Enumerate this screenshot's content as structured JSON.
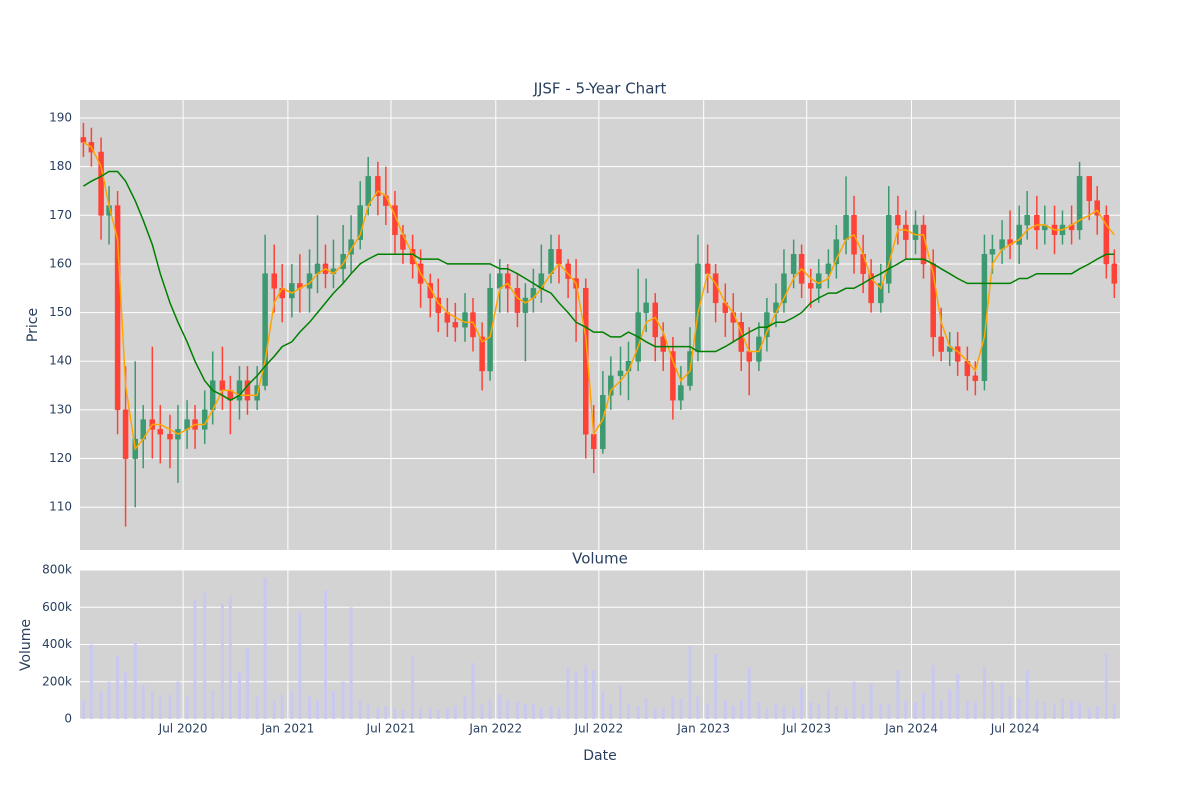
{
  "chart_data": [
    {
      "type": "candlestick",
      "title": "JJSF - 5-Year Chart",
      "y_label": "Price",
      "x": [
        "2020-01-08",
        "2020-01-22",
        "2020-02-08",
        "2020-02-22",
        "2020-03-08",
        "2020-03-22",
        "2020-04-08",
        "2020-04-22",
        "2020-05-08",
        "2020-05-22",
        "2020-06-08",
        "2020-06-22",
        "2020-07-08",
        "2020-07-22",
        "2020-08-08",
        "2020-08-22",
        "2020-09-08",
        "2020-09-22",
        "2020-10-08",
        "2020-10-22",
        "2020-11-08",
        "2020-11-22",
        "2020-12-08",
        "2020-12-22",
        "2021-01-08",
        "2021-01-22",
        "2021-02-08",
        "2021-02-22",
        "2021-03-08",
        "2021-03-22",
        "2021-04-08",
        "2021-04-22",
        "2021-05-08",
        "2021-05-22",
        "2021-06-08",
        "2021-06-22",
        "2021-07-08",
        "2021-07-22",
        "2021-08-08",
        "2021-08-22",
        "2021-09-08",
        "2021-09-22",
        "2021-10-08",
        "2021-10-22",
        "2021-11-08",
        "2021-11-22",
        "2021-12-08",
        "2021-12-22",
        "2022-01-08",
        "2022-01-22",
        "2022-02-08",
        "2022-02-22",
        "2022-03-08",
        "2022-03-22",
        "2022-04-08",
        "2022-04-22",
        "2022-05-08",
        "2022-05-22",
        "2022-06-08",
        "2022-06-22",
        "2022-07-08",
        "2022-07-22",
        "2022-08-08",
        "2022-08-22",
        "2022-09-08",
        "2022-09-22",
        "2022-10-08",
        "2022-10-22",
        "2022-11-08",
        "2022-11-22",
        "2022-12-08",
        "2022-12-22",
        "2023-01-08",
        "2023-01-22",
        "2023-02-08",
        "2023-02-22",
        "2023-03-08",
        "2023-03-22",
        "2023-04-08",
        "2023-04-22",
        "2023-05-08",
        "2023-05-22",
        "2023-06-08",
        "2023-06-22",
        "2023-07-08",
        "2023-07-22",
        "2023-08-08",
        "2023-08-22",
        "2023-09-08",
        "2023-09-22",
        "2023-10-08",
        "2023-10-22",
        "2023-11-08",
        "2023-11-22",
        "2023-12-08",
        "2023-12-22",
        "2024-01-08",
        "2024-01-22",
        "2024-02-08",
        "2024-02-22",
        "2024-03-08",
        "2024-03-22",
        "2024-04-08",
        "2024-04-22",
        "2024-05-08",
        "2024-05-22",
        "2024-06-08",
        "2024-06-22",
        "2024-07-08",
        "2024-07-22",
        "2024-08-08",
        "2024-08-22",
        "2024-09-08",
        "2024-09-22",
        "2024-10-08",
        "2024-10-22",
        "2024-11-08",
        "2024-11-22",
        "2024-12-08",
        "2024-12-22"
      ],
      "open": [
        186,
        185,
        183,
        170,
        172,
        130,
        120,
        124,
        128,
        126,
        125,
        124,
        126,
        128,
        126,
        130,
        136,
        134,
        132,
        136,
        132,
        135,
        158,
        155,
        153,
        156,
        155,
        158,
        160,
        158,
        159,
        162,
        165,
        172,
        178,
        174,
        172,
        166,
        163,
        160,
        156,
        153,
        150,
        148,
        147,
        150,
        145,
        138,
        155,
        158,
        155,
        150,
        153,
        155,
        158,
        163,
        160,
        157,
        155,
        125,
        122,
        133,
        137,
        138,
        140,
        150,
        152,
        145,
        142,
        132,
        135,
        142,
        160,
        158,
        152,
        150,
        148,
        142,
        140,
        145,
        150,
        152,
        158,
        162,
        156,
        155,
        158,
        160,
        165,
        170,
        162,
        158,
        152,
        156,
        170,
        168,
        165,
        168,
        160,
        145,
        142,
        143,
        140,
        137,
        136,
        162,
        163,
        165,
        164,
        168,
        170,
        167,
        168,
        166,
        168,
        167,
        178,
        173,
        170,
        160
      ],
      "high": [
        189,
        188,
        186,
        176,
        175,
        139,
        140,
        131,
        143,
        131,
        129,
        131,
        132,
        131,
        134,
        142,
        143,
        137,
        139,
        139,
        139,
        166,
        164,
        160,
        160,
        162,
        163,
        170,
        164,
        165,
        168,
        170,
        177,
        182,
        181,
        180,
        175,
        168,
        166,
        163,
        158,
        157,
        153,
        152,
        154,
        153,
        148,
        158,
        161,
        160,
        158,
        156,
        159,
        164,
        166,
        166,
        161,
        161,
        157,
        131,
        138,
        141,
        143,
        144,
        159,
        157,
        154,
        148,
        145,
        139,
        147,
        166,
        164,
        160,
        156,
        154,
        150,
        147,
        148,
        153,
        156,
        163,
        165,
        164,
        159,
        161,
        163,
        168,
        178,
        174,
        166,
        161,
        160,
        176,
        174,
        171,
        171,
        170,
        163,
        151,
        146,
        146,
        143,
        140,
        166,
        166,
        169,
        171,
        172,
        175,
        174,
        172,
        172,
        171,
        172,
        181,
        178,
        176,
        172,
        163
      ],
      "low": [
        182,
        180,
        165,
        164,
        125,
        106,
        110,
        118,
        120,
        119,
        118,
        115,
        122,
        122,
        123,
        127,
        130,
        125,
        128,
        129,
        130,
        134,
        150,
        148,
        149,
        150,
        150,
        154,
        155,
        155,
        156,
        158,
        163,
        170,
        170,
        168,
        162,
        160,
        157,
        151,
        149,
        146,
        145,
        144,
        144,
        142,
        134,
        136,
        150,
        150,
        147,
        140,
        150,
        152,
        156,
        156,
        153,
        144,
        120,
        117,
        121,
        130,
        133,
        132,
        138,
        146,
        140,
        138,
        128,
        130,
        134,
        140,
        154,
        148,
        145,
        144,
        138,
        133,
        138,
        142,
        147,
        150,
        155,
        153,
        151,
        152,
        155,
        157,
        162,
        158,
        154,
        150,
        150,
        154,
        164,
        161,
        162,
        157,
        141,
        140,
        139,
        137,
        134,
        133,
        134,
        158,
        160,
        161,
        160,
        165,
        163,
        164,
        162,
        164,
        164,
        165,
        169,
        166,
        157,
        153
      ],
      "close": [
        185,
        183,
        170,
        172,
        130,
        120,
        124,
        128,
        126,
        125,
        124,
        126,
        128,
        126,
        130,
        136,
        134,
        132,
        136,
        132,
        135,
        158,
        155,
        153,
        156,
        155,
        158,
        160,
        158,
        159,
        162,
        165,
        172,
        178,
        174,
        172,
        166,
        163,
        160,
        156,
        153,
        150,
        148,
        147,
        150,
        145,
        138,
        155,
        158,
        155,
        150,
        153,
        155,
        158,
        163,
        160,
        157,
        155,
        125,
        122,
        133,
        137,
        138,
        140,
        150,
        152,
        145,
        142,
        132,
        135,
        142,
        160,
        158,
        152,
        150,
        148,
        142,
        140,
        145,
        150,
        152,
        158,
        162,
        156,
        155,
        158,
        160,
        165,
        170,
        162,
        158,
        152,
        156,
        170,
        168,
        165,
        168,
        160,
        145,
        142,
        143,
        140,
        137,
        136,
        162,
        163,
        165,
        164,
        168,
        170,
        167,
        168,
        166,
        168,
        167,
        178,
        173,
        170,
        160,
        156
      ],
      "increasing_color": "#3d9970",
      "decreasing_color": "#ff4136",
      "series": [
        {
          "color": "#ffa500",
          "values": [
            185,
            184,
            180,
            172,
            165,
            135,
            122,
            124,
            127,
            127,
            126,
            125,
            126,
            127,
            127,
            130,
            134,
            134,
            133,
            133,
            133,
            140,
            152,
            155,
            154,
            155,
            156,
            158,
            159,
            158,
            160,
            163,
            166,
            172,
            175,
            174,
            170,
            166,
            162,
            158,
            155,
            152,
            150,
            149,
            148,
            148,
            144,
            145,
            155,
            156,
            153,
            152,
            153,
            155,
            158,
            160,
            158,
            156,
            145,
            125,
            128,
            134,
            136,
            138,
            143,
            148,
            149,
            146,
            140,
            136,
            138,
            150,
            158,
            156,
            152,
            150,
            146,
            142,
            142,
            146,
            150,
            153,
            157,
            159,
            157,
            156,
            157,
            161,
            165,
            166,
            162,
            157,
            155,
            160,
            167,
            167,
            166,
            166,
            158,
            148,
            143,
            142,
            140,
            138,
            145,
            160,
            163,
            164,
            165,
            167,
            168,
            168,
            167,
            167,
            168,
            169,
            170,
            171,
            168,
            166
          ]
        },
        {
          "color": "#008000",
          "values": [
            176,
            177,
            178,
            179,
            179,
            177,
            173,
            169,
            164,
            158,
            152,
            148,
            144,
            140,
            136,
            134,
            133,
            132,
            133,
            135,
            137,
            139,
            141,
            143,
            144,
            146,
            148,
            150,
            152,
            154,
            156,
            158,
            160,
            161,
            162,
            162,
            162,
            162,
            162,
            161,
            161,
            161,
            160,
            160,
            160,
            160,
            160,
            160,
            159,
            159,
            158,
            157,
            156,
            155,
            154,
            152,
            150,
            148,
            147,
            146,
            146,
            145,
            145,
            146,
            145,
            144,
            143,
            143,
            143,
            143,
            143,
            142,
            142,
            142,
            143,
            144,
            145,
            146,
            147,
            147,
            148,
            148,
            149,
            150,
            152,
            153,
            154,
            154,
            155,
            155,
            156,
            157,
            158,
            159,
            160,
            161,
            161,
            161,
            160,
            159,
            158,
            157,
            156,
            156,
            156,
            156,
            156,
            156,
            157,
            157,
            158,
            158,
            158,
            158,
            158,
            159,
            160,
            161,
            162,
            162
          ]
        }
      ],
      "ylim": [
        101.2,
        193.7
      ],
      "yticks": [
        110,
        120,
        130,
        140,
        150,
        160,
        170,
        180,
        190
      ],
      "grid": true
    },
    {
      "type": "bar",
      "title": "Volume",
      "y_label": "Volume",
      "x_label": "Date",
      "color": "#c8c8f0",
      "values": [
        100000,
        400000,
        150000,
        200000,
        340000,
        250000,
        410000,
        180000,
        150000,
        120000,
        130000,
        200000,
        120000,
        640000,
        680000,
        150000,
        620000,
        660000,
        250000,
        380000,
        120000,
        760000,
        100000,
        130000,
        150000,
        580000,
        120000,
        100000,
        690000,
        150000,
        200000,
        600000,
        100000,
        80000,
        60000,
        70000,
        60000,
        50000,
        340000,
        60000,
        60000,
        50000,
        60000,
        70000,
        120000,
        300000,
        80000,
        100000,
        130000,
        100000,
        90000,
        80000,
        80000,
        60000,
        70000,
        60000,
        280000,
        250000,
        290000,
        260000,
        150000,
        80000,
        180000,
        80000,
        70000,
        110000,
        60000,
        60000,
        120000,
        110000,
        390000,
        120000,
        80000,
        350000,
        100000,
        70000,
        100000,
        280000,
        90000,
        60000,
        80000,
        70000,
        60000,
        170000,
        90000,
        80000,
        160000,
        70000,
        60000,
        200000,
        80000,
        190000,
        80000,
        80000,
        260000,
        100000,
        90000,
        140000,
        290000,
        100000,
        160000,
        240000,
        100000,
        90000,
        280000,
        200000,
        190000,
        120000,
        110000,
        260000,
        100000,
        90000,
        80000,
        110000,
        100000,
        90000,
        60000,
        70000,
        350000,
        80000
      ],
      "ylim": [
        0,
        800000
      ],
      "yticks": [
        0,
        {
          "value": 200000,
          "label": "200k"
        },
        {
          "value": 400000,
          "label": "400k"
        },
        {
          "value": 600000,
          "label": "600k"
        },
        {
          "value": 800000,
          "label": "800k"
        }
      ],
      "xlim": [
        "2020-01-02",
        "2025-01-01"
      ],
      "xticks": [
        {
          "value": "2020-07-01",
          "label": "Jul 2020"
        },
        {
          "value": "2021-01-01",
          "label": "Jan 2021"
        },
        {
          "value": "2021-07-01",
          "label": "Jul 2021"
        },
        {
          "value": "2022-01-01",
          "label": "Jan 2022"
        },
        {
          "value": "2022-07-01",
          "label": "Jul 2022"
        },
        {
          "value": "2023-01-01",
          "label": "Jan 2023"
        },
        {
          "value": "2023-07-01",
          "label": "Jul 2023"
        },
        {
          "value": "2024-01-01",
          "label": "Jan 2024"
        },
        {
          "value": "2024-07-01",
          "label": "Jul 2024"
        }
      ],
      "grid": true
    }
  ]
}
